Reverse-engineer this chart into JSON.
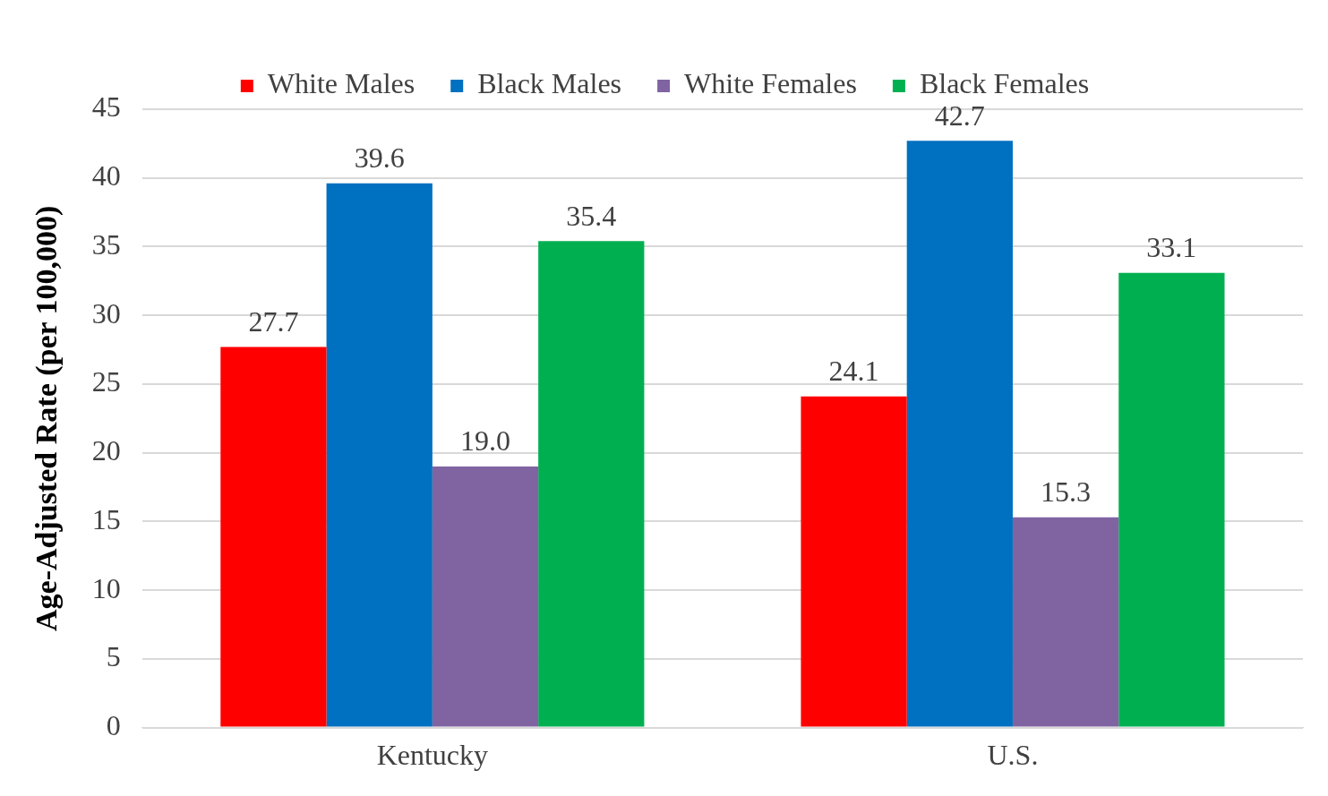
{
  "chart_data": {
    "type": "bar",
    "ylabel": "Age-Adjusted Rate (per 100,000)",
    "categories": [
      "Kentucky",
      "U.S."
    ],
    "series": [
      {
        "name": "White Males",
        "color": "#ff0000",
        "values": [
          27.7,
          24.1
        ],
        "value_labels": [
          "27.7",
          "24.1"
        ]
      },
      {
        "name": "Black Males",
        "color": "#0070c0",
        "values": [
          39.6,
          42.7
        ],
        "value_labels": [
          "39.6",
          "42.7"
        ]
      },
      {
        "name": "White Females",
        "color": "#8064a2",
        "values": [
          19.0,
          15.3
        ],
        "value_labels": [
          "19.0",
          "15.3"
        ]
      },
      {
        "name": "Black Females",
        "color": "#00b050",
        "values": [
          35.4,
          33.1
        ],
        "value_labels": [
          "35.4",
          "33.1"
        ]
      }
    ],
    "ylim": [
      0,
      45
    ],
    "yticks": [
      0,
      5,
      10,
      15,
      20,
      25,
      30,
      35,
      40,
      45
    ],
    "grid": "y",
    "legend": "top"
  }
}
